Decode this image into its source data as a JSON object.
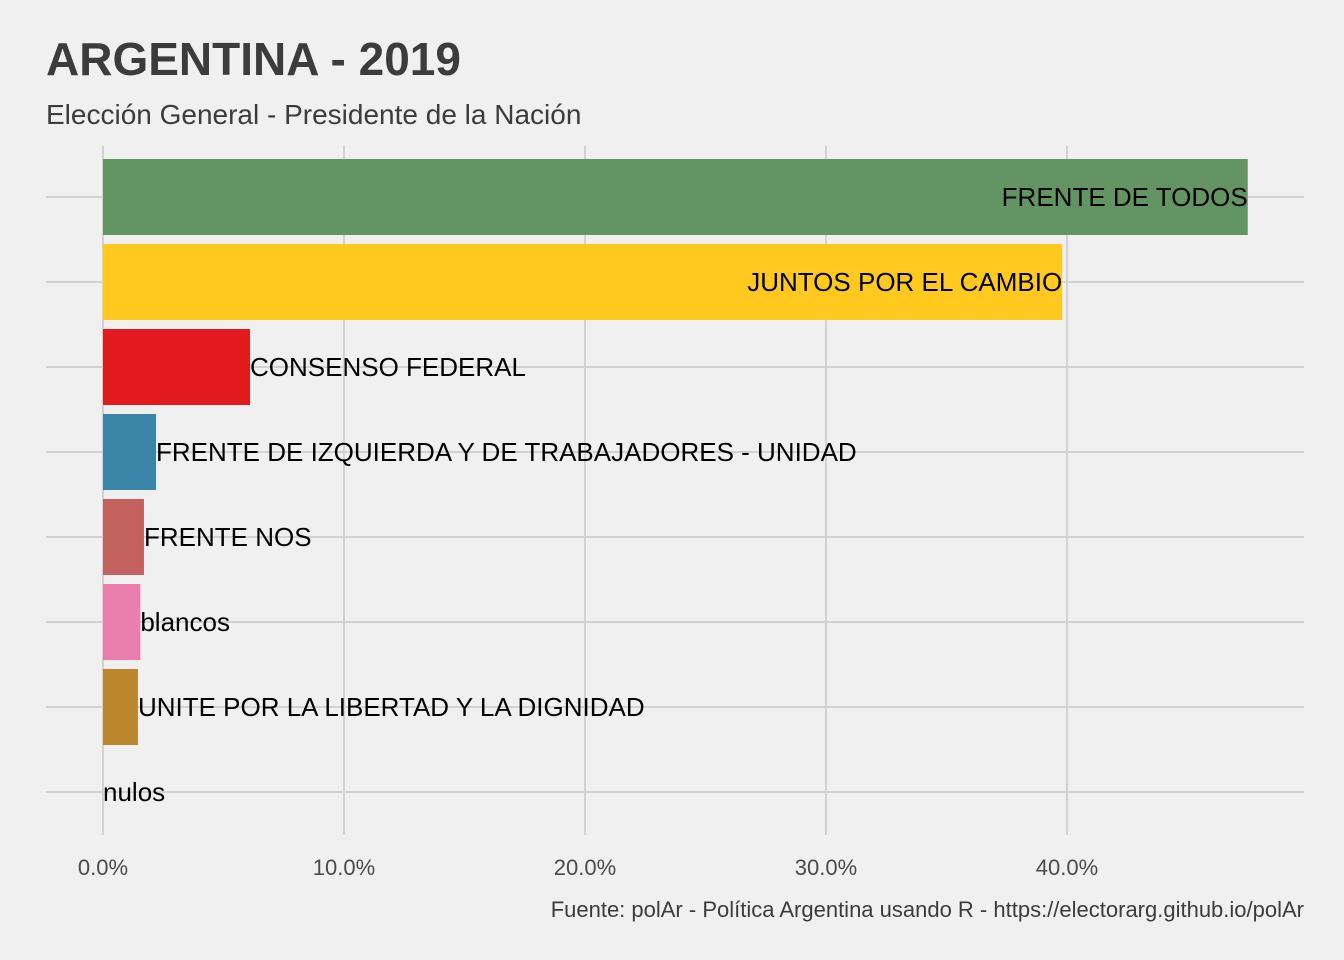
{
  "chart_data": {
    "type": "bar",
    "orientation": "horizontal",
    "title": "ARGENTINA - 2019",
    "subtitle": "Elección General - Presidente de la Nación",
    "caption": "Fuente: polAr - Política Argentina usando R - https://electorarg.github.io/polAr",
    "xlabel": "",
    "ylabel": "",
    "xlim": [
      0,
      49.5
    ],
    "x_ticks": [
      0,
      10,
      20,
      30,
      40
    ],
    "x_tick_labels": [
      "0.0%",
      "10.0%",
      "20.0%",
      "30.0%",
      "40.0%"
    ],
    "grid": true,
    "legend": "none",
    "categories": [
      "FRENTE DE TODOS",
      "JUNTOS POR EL CAMBIO",
      "CONSENSO FEDERAL",
      "FRENTE DE IZQUIERDA Y DE TRABAJADORES - UNIDAD",
      "FRENTE NOS",
      "blancos",
      "UNITE POR LA LIBERTAD Y LA DIGNIDAD",
      "nulos"
    ],
    "values": [
      47.5,
      39.8,
      6.1,
      2.2,
      1.7,
      1.55,
      1.45,
      0
    ],
    "colors": [
      "#639563",
      "#ffc920",
      "#e31a1c",
      "#3b85a9",
      "#c46260",
      "#ec7ead",
      "#bc862e",
      "#808080"
    ],
    "label_align": [
      "inside-end",
      "inside-end",
      "outside",
      "outside",
      "outside",
      "outside",
      "outside",
      "outside"
    ]
  }
}
